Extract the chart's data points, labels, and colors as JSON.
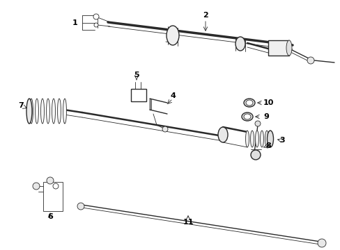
{
  "bg_color": "#ffffff",
  "line_color": "#2a2a2a",
  "label_color": "#000000",
  "fig_width": 4.89,
  "fig_height": 3.6,
  "dpi": 100,
  "lw_thin": 0.6,
  "lw_med": 1.0,
  "lw_thick": 1.8,
  "lw_heavy": 2.5
}
